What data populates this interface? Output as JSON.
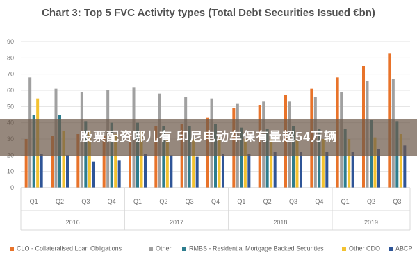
{
  "chart_data": {
    "type": "bar",
    "title": "Chart 3: Top 5 FVC Activity types (Total Debt Securities Issued €bn)",
    "categories": [
      "Q1",
      "Q2",
      "Q3",
      "Q4",
      "Q1",
      "Q2",
      "Q3",
      "Q4",
      "Q1",
      "Q2",
      "Q3",
      "Q4",
      "Q1",
      "Q2",
      "Q3"
    ],
    "groups": [
      {
        "label": "2016",
        "count": 4
      },
      {
        "label": "2017",
        "count": 4
      },
      {
        "label": "2018",
        "count": 4
      },
      {
        "label": "2019",
        "count": 3
      }
    ],
    "yticks": [
      0,
      10,
      20,
      30,
      40,
      50,
      60,
      70,
      80,
      90
    ],
    "ylim": [
      0,
      90
    ],
    "grid": true,
    "legend_position": "bottom",
    "series": [
      {
        "name": "CLO - Collateralised Loan Obligations",
        "color": "#E8732A",
        "values": [
          30,
          32,
          33,
          32,
          33,
          38,
          39,
          43,
          49,
          51,
          57,
          61,
          68,
          75,
          83
        ]
      },
      {
        "name": "Other",
        "color": "#A0A0A0",
        "values": [
          68,
          61,
          59,
          60,
          62,
          58,
          56,
          55,
          52,
          53,
          53,
          56,
          59,
          66,
          67
        ]
      },
      {
        "name": "RMBS - Residential Mortgage Backed Securities",
        "color": "#2E7D8E",
        "values": [
          45,
          45,
          41,
          40,
          40,
          38,
          38,
          39,
          37,
          36,
          38,
          36,
          36,
          42,
          41
        ]
      },
      {
        "name": "Other CDO",
        "color": "#F3C230",
        "values": [
          55,
          35,
          35,
          33,
          35,
          30,
          30,
          31,
          30,
          30,
          29,
          30,
          30,
          31,
          33
        ]
      },
      {
        "name": "ABCP",
        "color": "#2F5597",
        "values": [
          21,
          20,
          16,
          17,
          21,
          20,
          19,
          21,
          21,
          22,
          22,
          22,
          22,
          24,
          26
        ]
      }
    ]
  },
  "overlay": {
    "banner_text": "股票配资哪儿有 印尼电动车保有量超54万辆"
  }
}
